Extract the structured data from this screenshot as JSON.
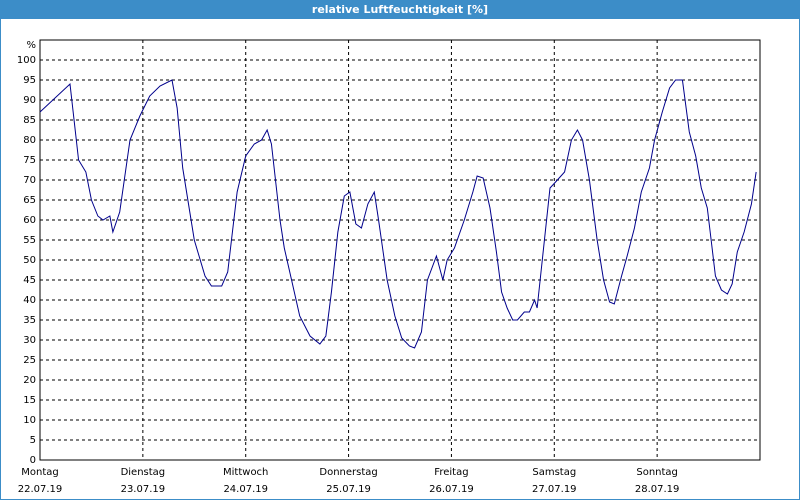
{
  "chart_data": {
    "type": "line",
    "title": "relative Luftfeuchtigkeit [%]",
    "y_unit": "%",
    "xlim": [
      0,
      168
    ],
    "xticks": [
      {
        "value": 0,
        "label": "Montag",
        "date": "22.07.19"
      },
      {
        "value": 24,
        "label": "Dienstag",
        "date": "23.07.19"
      },
      {
        "value": 48,
        "label": "Mittwoch",
        "date": "24.07.19"
      },
      {
        "value": 72,
        "label": "Donnerstag",
        "date": "25.07.19"
      },
      {
        "value": 96,
        "label": "Freitag",
        "date": "26.07.19"
      },
      {
        "value": 120,
        "label": "Samstag",
        "date": "27.07.19"
      },
      {
        "value": 144,
        "label": "Sonntag",
        "date": "28.07.19"
      }
    ],
    "ylim": [
      0,
      105
    ],
    "yticks": [
      0,
      5,
      10,
      15,
      20,
      25,
      30,
      35,
      40,
      45,
      50,
      55,
      60,
      65,
      70,
      75,
      80,
      85,
      90,
      95,
      100
    ],
    "grid": true,
    "series": [
      {
        "color": "#00008b",
        "x": [
          0,
          7,
          9,
          10.7,
          12,
          13.5,
          14.7,
          16.3,
          17,
          18.6,
          21,
          23.3,
          25.6,
          28,
          30.8,
          32,
          33.3,
          36,
          38.5,
          40,
          42.4,
          43.8,
          46,
          48,
          50,
          51.7,
          53,
          54,
          56,
          57,
          58.7,
          60.6,
          63,
          65.3,
          66.7,
          68,
          69.5,
          71,
          72.3,
          73.7,
          75,
          76.5,
          78,
          79,
          81,
          82.8,
          84.4,
          86.2,
          87.4,
          89,
          90.4,
          92.5,
          94,
          95,
          96.7,
          99,
          101,
          102,
          103.4,
          105,
          106.5,
          107.7,
          109,
          110.3,
          111.4,
          113,
          114.2,
          115.4,
          116,
          117.2,
          119,
          120.3,
          122.4,
          124,
          125.4,
          126.6,
          128.2,
          130,
          131.5,
          132.9,
          134,
          135.7,
          137,
          138.7,
          140.3,
          142.2,
          143.4,
          145.2,
          146.9,
          148.3,
          149.9,
          151.5,
          153,
          154.3,
          155.7,
          156.6,
          157.6,
          159,
          160.4,
          161.5,
          162.7,
          164.3,
          166,
          167.1
        ],
        "values": [
          87,
          94,
          75,
          72,
          65,
          61,
          60,
          61,
          57,
          62,
          80,
          86,
          91,
          93.5,
          95,
          88,
          73,
          55,
          46,
          43.5,
          43.5,
          47,
          67,
          76,
          79,
          80,
          82.5,
          79,
          60,
          53,
          45,
          36,
          31,
          29,
          31,
          42,
          57,
          66,
          67,
          59,
          58,
          64,
          67,
          60,
          45,
          36,
          30.5,
          28.5,
          28,
          32,
          45,
          51,
          45,
          50,
          53,
          60,
          67,
          71,
          70.5,
          63,
          52,
          42,
          38,
          35,
          35,
          37,
          37,
          40,
          38,
          50,
          68,
          69.5,
          72,
          80,
          82.5,
          80,
          70,
          55,
          45,
          39.5,
          39,
          46,
          51,
          58,
          67,
          73,
          80,
          87,
          93,
          95,
          95,
          82,
          76,
          68,
          63,
          55,
          46,
          42.5,
          41.5,
          44,
          52,
          57,
          64,
          72
        ]
      }
    ]
  }
}
